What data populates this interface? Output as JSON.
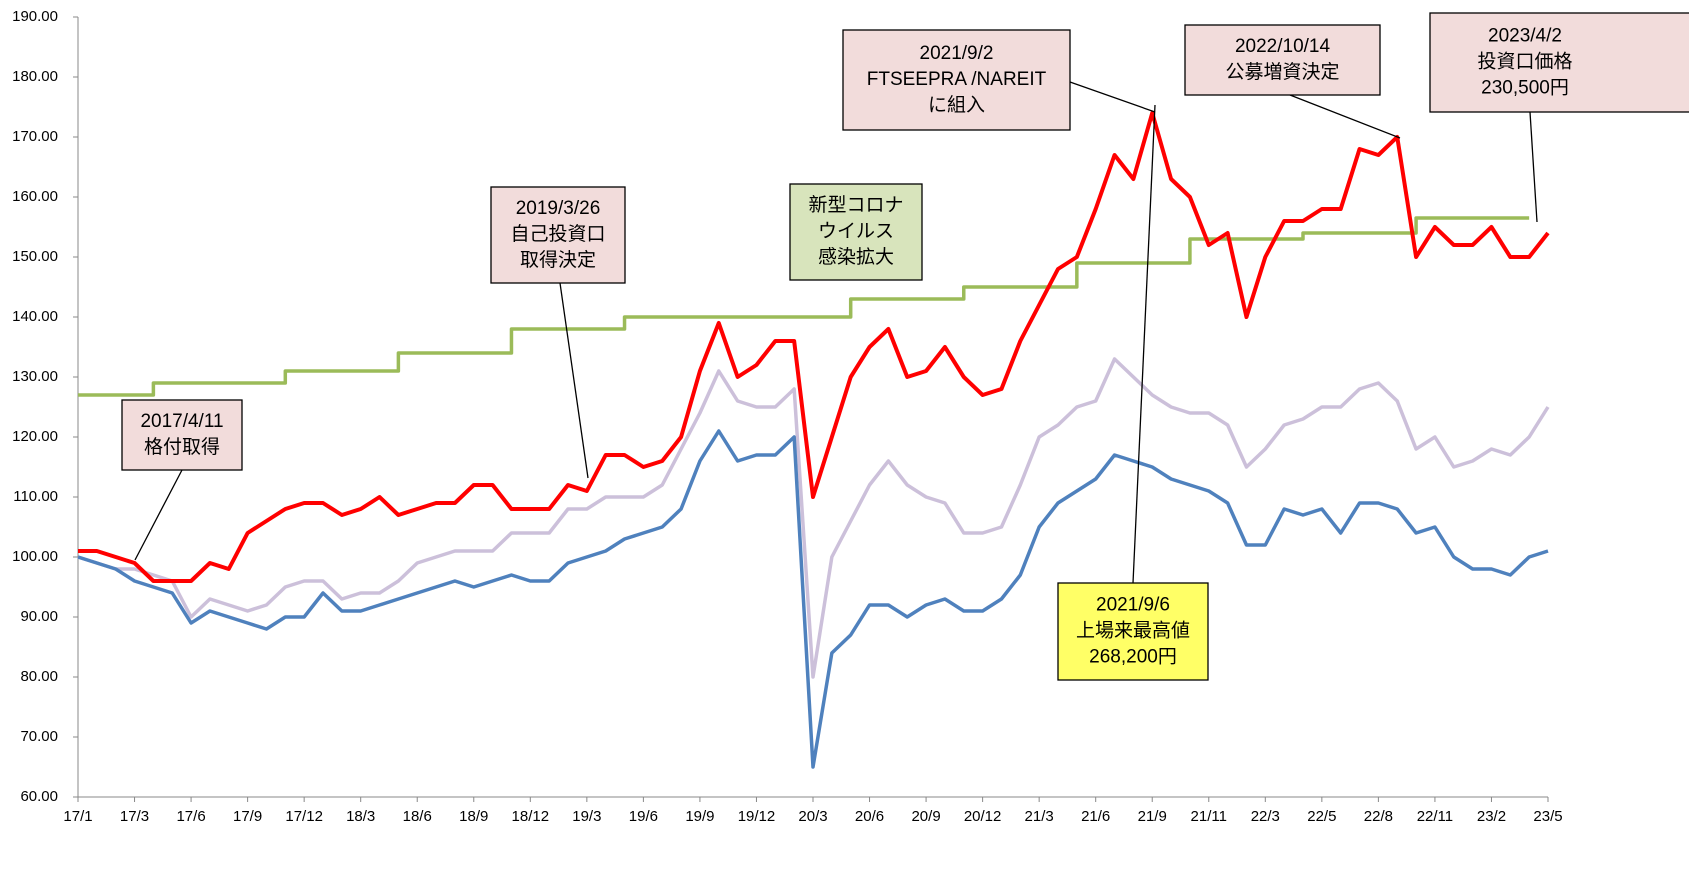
{
  "chart_data": {
    "type": "line",
    "categories": [
      "17/1",
      null,
      null,
      "17/3",
      null,
      null,
      "17/6",
      null,
      null,
      "17/9",
      null,
      null,
      "17/12",
      null,
      null,
      "18/3",
      null,
      null,
      "18/6",
      null,
      null,
      "18/9",
      null,
      null,
      "18/12",
      null,
      null,
      "19/3",
      null,
      null,
      "19/6",
      null,
      null,
      "19/9",
      null,
      null,
      "19/12",
      null,
      null,
      "20/3",
      null,
      null,
      "20/6",
      null,
      null,
      "20/9",
      null,
      null,
      "20/12",
      null,
      null,
      "21/3",
      null,
      null,
      "21/6",
      null,
      null,
      "21/9",
      null,
      null,
      "21/11",
      null,
      null,
      "22/3",
      null,
      null,
      "22/5",
      null,
      null,
      "22/8",
      null,
      null,
      "22/11",
      null,
      null,
      "23/2",
      null,
      null,
      "23/5"
    ],
    "series": [
      {
        "color": "#9bbb59",
        "step": true,
        "values": [
          127,
          127,
          127,
          127,
          129,
          129,
          129,
          129,
          129,
          129,
          129,
          131,
          131,
          131,
          131,
          131,
          131,
          134,
          134,
          134,
          134,
          134,
          134,
          138,
          138,
          138,
          138,
          138,
          138,
          140,
          140,
          140,
          140,
          140,
          140,
          140,
          140,
          140,
          140,
          140,
          140,
          143,
          143,
          143,
          143,
          143,
          143,
          145,
          145,
          145,
          145,
          145,
          145,
          149,
          149,
          149,
          149,
          149,
          149,
          153,
          153,
          153,
          153,
          153,
          153,
          154,
          154,
          154,
          154,
          154,
          154,
          156.5,
          156.5,
          156.5,
          156.5,
          156.5,
          156.5,
          156.5,
          null
        ]
      },
      {
        "color": "#ccc0da",
        "values": [
          100,
          99,
          98,
          98,
          97,
          96,
          90,
          93,
          92,
          91,
          92,
          95,
          96,
          96,
          93,
          94,
          94,
          96,
          99,
          100,
          101,
          101,
          101,
          104,
          104,
          104,
          108,
          108,
          110,
          110,
          110,
          112,
          118,
          124,
          131,
          126,
          125,
          125,
          128,
          80,
          100,
          106,
          112,
          116,
          112,
          110,
          109,
          104,
          104,
          105,
          112,
          120,
          122,
          125,
          126,
          133,
          130,
          127,
          125,
          124,
          124,
          122,
          115,
          118,
          122,
          123,
          125,
          125,
          128,
          129,
          126,
          118,
          120,
          115,
          116,
          118,
          117,
          120,
          125
        ]
      },
      {
        "color": "#4f81bd",
        "values": [
          100,
          99,
          98,
          96,
          95,
          94,
          89,
          91,
          90,
          89,
          88,
          90,
          90,
          94,
          91,
          91,
          92,
          93,
          94,
          95,
          96,
          95,
          96,
          97,
          96,
          96,
          99,
          100,
          101,
          103,
          104,
          105,
          108,
          116,
          121,
          116,
          117,
          117,
          120,
          65,
          84,
          87,
          92,
          92,
          90,
          92,
          93,
          91,
          91,
          93,
          97,
          105,
          109,
          111,
          113,
          117,
          116,
          115,
          113,
          112,
          111,
          109,
          102,
          102,
          108,
          107,
          108,
          104,
          109,
          109,
          108,
          104,
          105,
          100,
          98,
          98,
          97,
          100,
          101
        ]
      },
      {
        "color": "#ff0000",
        "values": [
          101,
          101,
          100,
          99,
          96,
          96,
          96,
          99,
          98,
          104,
          106,
          108,
          109,
          109,
          107,
          108,
          110,
          107,
          108,
          109,
          109,
          112,
          112,
          108,
          108,
          108,
          112,
          111,
          117,
          117,
          115,
          116,
          120,
          131,
          139,
          130,
          132,
          136,
          136,
          110,
          120,
          130,
          135,
          138,
          130,
          131,
          135,
          130,
          127,
          128,
          136,
          142,
          148,
          150,
          158,
          167,
          163,
          174,
          163,
          160,
          152,
          154,
          140,
          150,
          156,
          156,
          158,
          158,
          168,
          167,
          170,
          150,
          155,
          152,
          152,
          155,
          150,
          150,
          154
        ]
      }
    ],
    "ylim": [
      60,
      190
    ],
    "yticks": [
      {
        "value": 60,
        "label": "60.00"
      },
      {
        "value": 70,
        "label": "70.00"
      },
      {
        "value": 80,
        "label": "80.00"
      },
      {
        "value": 90,
        "label": "90.00"
      },
      {
        "value": 100,
        "label": "100.00"
      },
      {
        "value": 110,
        "label": "110.00"
      },
      {
        "value": 120,
        "label": "120.00"
      },
      {
        "value": 130,
        "label": "130.00"
      },
      {
        "value": 140,
        "label": "140.00"
      },
      {
        "value": 150,
        "label": "150.00"
      },
      {
        "value": 160,
        "label": "160.00"
      },
      {
        "value": 170,
        "label": "170.00"
      },
      {
        "value": 180,
        "label": "180.00"
      },
      {
        "value": 190,
        "label": "190.00"
      }
    ],
    "grid": false,
    "annotations": [
      {
        "lines": [
          "2017/4/11",
          "格付取得"
        ],
        "color": "#f2dcdb"
      },
      {
        "lines": [
          "2019/3/26",
          "自己投資口",
          "取得決定"
        ],
        "color": "#f2dcdb"
      },
      {
        "lines": [
          "新型コロナ",
          "ウイルス",
          "感染拡大"
        ],
        "color": "#d8e4bc"
      },
      {
        "lines": [
          "2021/9/2",
          "FTSEEPRA /NAREIT",
          "に組入"
        ],
        "color": "#f2dcdb"
      },
      {
        "lines": [
          "2022/10/14",
          "公募増資決定"
        ],
        "color": "#f2dcdb"
      },
      {
        "lines": [
          "2023/4/2",
          "投資口価格",
          "230,500円"
        ],
        "color": "#f2dcdb"
      },
      {
        "lines": [
          "2021/9/6",
          "上場来最高値",
          "268,200円"
        ],
        "color": "#ffff66"
      }
    ]
  }
}
